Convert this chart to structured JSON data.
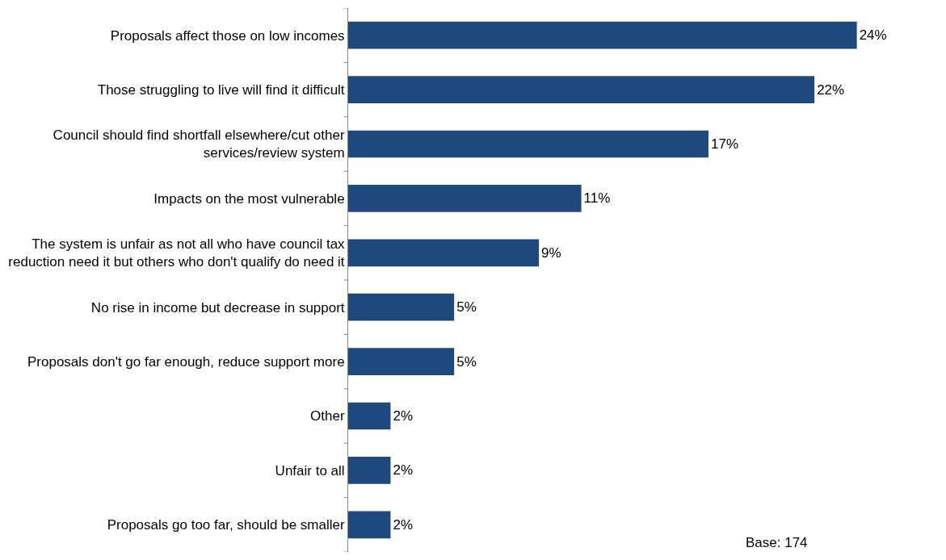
{
  "chart_data": {
    "type": "bar",
    "orientation": "horizontal",
    "categories": [
      "Proposals affect those on low incomes",
      "Those struggling to live will find it difficult",
      "Council should find shortfall elsewhere/cut other\nservices/review system",
      "Impacts on the most vulnerable",
      "The system is unfair as not all who have council tax\nreduction need it but others who don't qualify do need it",
      "No rise in income but decrease in support",
      "Proposals don't go far enough, reduce support more",
      "Other",
      "Unfair to all",
      "Proposals go too far, should be smaller"
    ],
    "values": [
      24,
      22,
      17,
      11,
      9,
      5,
      5,
      2,
      2,
      2
    ],
    "value_labels": [
      "24%",
      "22%",
      "17%",
      "11%",
      "9%",
      "5%",
      "5%",
      "2%",
      "2%",
      "2%"
    ],
    "color": "#1f497d",
    "legend": false,
    "annotations": [
      "Base: 174"
    ]
  }
}
